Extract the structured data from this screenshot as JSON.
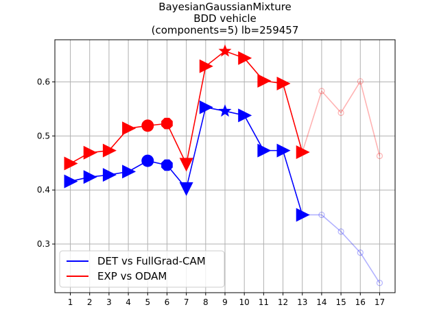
{
  "chart_data": {
    "type": "line",
    "title": [
      "BayesianGaussianMixture",
      "BDD vehicle",
      "(components=5) lb=259457"
    ],
    "x": [
      1,
      2,
      3,
      4,
      5,
      6,
      7,
      8,
      9,
      10,
      11,
      12,
      13,
      14,
      15,
      16,
      17
    ],
    "xlim": [
      0.2,
      17.8
    ],
    "ylim": [
      0.21,
      0.678
    ],
    "yticks": [
      0.3,
      0.4,
      0.5,
      0.6
    ],
    "ytick_labels": [
      "0.3",
      "0.4",
      "0.5",
      "0.6"
    ],
    "grid": true,
    "legend_position": "lower-left",
    "series": [
      {
        "name": "DET vs FullGrad-CAM",
        "color": "#0000ff",
        "values": [
          0.416,
          0.424,
          0.428,
          0.434,
          0.454,
          0.446,
          0.403,
          0.553,
          0.546,
          0.538,
          0.473,
          0.473,
          0.354,
          0.354,
          0.323,
          0.284,
          0.228
        ],
        "markers": [
          "tri-right",
          "tri-right",
          "tri-right",
          "tri-right",
          "circle",
          "octagon",
          "tri-down",
          "tri-right",
          "star",
          "tri-right",
          "tri-right",
          "tri-right",
          "tri-right",
          "ring",
          "ring",
          "ring",
          "ring"
        ]
      },
      {
        "name": "EXP vs ODAM",
        "color": "#ff0000",
        "values": [
          0.449,
          0.469,
          0.473,
          0.514,
          0.519,
          0.523,
          0.448,
          0.629,
          0.657,
          0.644,
          0.602,
          0.597,
          0.47,
          0.583,
          0.543,
          0.601,
          0.463
        ],
        "markers": [
          "tri-right",
          "tri-right",
          "tri-right",
          "tri-right",
          "circle",
          "octagon",
          "tri-down",
          "tri-right",
          "star",
          "tri-right",
          "tri-right",
          "tri-right",
          "tri-right",
          "ring",
          "ring",
          "ring",
          "ring"
        ]
      }
    ],
    "faded_from_index": 12
  }
}
